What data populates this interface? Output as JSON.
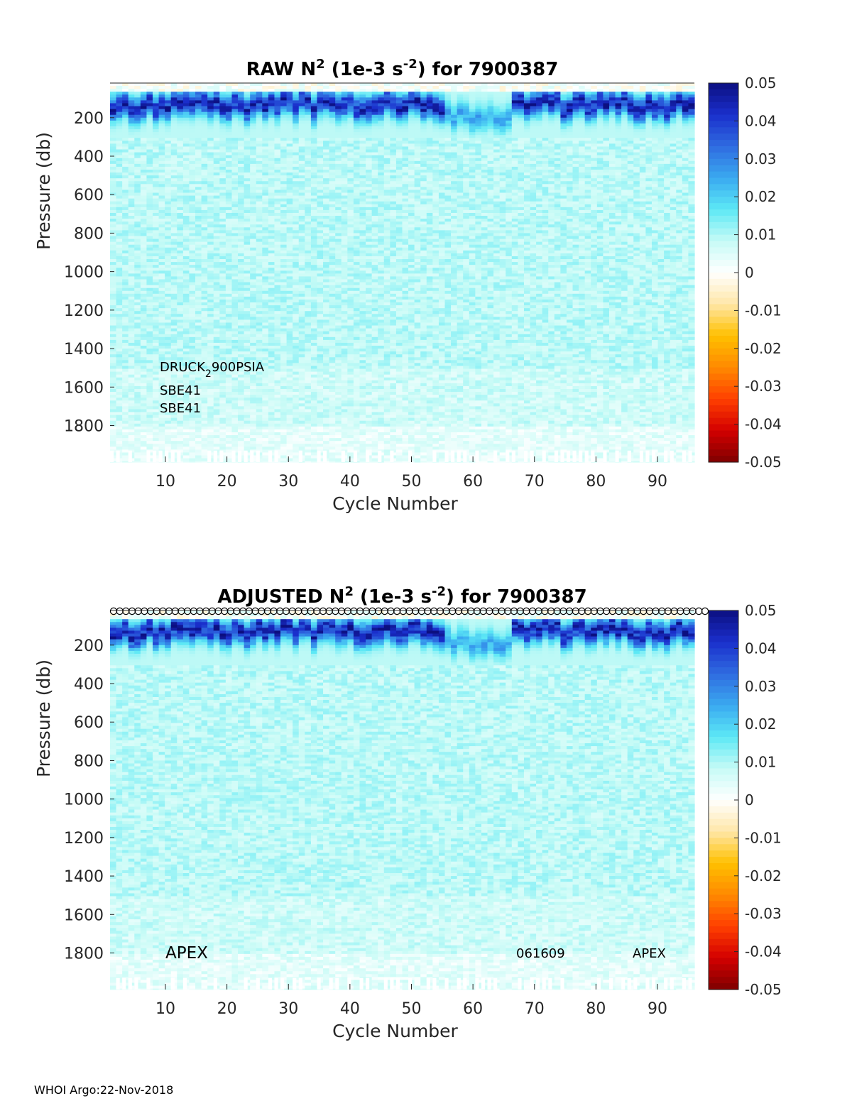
{
  "footer": "WHOI Argo:22-Nov-2018",
  "colors": {
    "colormap": [
      "#7f0000",
      "#d40000",
      "#ff4000",
      "#ff8a00",
      "#ffc000",
      "#ffe7a8",
      "#ffffff",
      "#c6fbf6",
      "#5ce8f5",
      "#3aa9f0",
      "#2f6be0",
      "#1a2fcc",
      "#0c0f80"
    ],
    "sensor_flag": "#000000"
  },
  "chart_data": [
    {
      "type": "heatmap",
      "title_prefix": "RAW N",
      "title_sup1": "2",
      "title_mid": " (1e-3 s",
      "title_sup2": "-2",
      "title_suffix": ") for 7900387",
      "xlabel": "Cycle Number",
      "ylabel": "Pressure (db)",
      "xlim": [
        1,
        96
      ],
      "ylim": [
        1990,
        20
      ],
      "xticks": [
        "10",
        "20",
        "30",
        "40",
        "50",
        "60",
        "70",
        "80",
        "90"
      ],
      "xtick_values": [
        10,
        20,
        30,
        40,
        50,
        60,
        70,
        80,
        90
      ],
      "yticks": [
        "200",
        "400",
        "600",
        "800",
        "1000",
        "1200",
        "1400",
        "1600",
        "1800"
      ],
      "ytick_values": [
        200,
        400,
        600,
        800,
        1000,
        1200,
        1400,
        1600,
        1800
      ],
      "clim": [
        -0.05,
        0.05
      ],
      "colorbar_ticks": [
        "0.05",
        "0.04",
        "0.03",
        "0.02",
        "0.01",
        "0",
        "-0.01",
        "-0.02",
        "-0.03",
        "-0.04",
        "-0.05"
      ],
      "colorbar_values": [
        0.05,
        0.04,
        0.03,
        0.02,
        0.01,
        0,
        -0.01,
        -0.02,
        -0.03,
        -0.04,
        -0.05
      ],
      "field_description": {
        "surface_layer_db": [
          20,
          60
        ],
        "surface_value": 0.001,
        "pycnocline_db": [
          60,
          300
        ],
        "pycnocline_peak_value": 0.048,
        "deep_value": 0.009,
        "weak_cycles": [
          56,
          66
        ]
      },
      "annotations": {
        "pressure_sensor_prefix": "DRUCK",
        "pressure_sensor_sub": "2",
        "pressure_sensor_suffix": "900PSIA",
        "ctd1": "SBE41",
        "ctd2": "SBE41"
      },
      "qc_circles": false
    },
    {
      "type": "heatmap",
      "title_prefix": "ADJUSTED N",
      "title_sup1": "2",
      "title_mid": " (1e-3 s",
      "title_sup2": "-2",
      "title_suffix": ") for 7900387",
      "xlabel": "Cycle Number",
      "ylabel": "Pressure (db)",
      "xlim": [
        1,
        96
      ],
      "ylim": [
        1990,
        20
      ],
      "xticks": [
        "10",
        "20",
        "30",
        "40",
        "50",
        "60",
        "70",
        "80",
        "90"
      ],
      "xtick_values": [
        10,
        20,
        30,
        40,
        50,
        60,
        70,
        80,
        90
      ],
      "yticks": [
        "200",
        "400",
        "600",
        "800",
        "1000",
        "1200",
        "1400",
        "1600",
        "1800"
      ],
      "ytick_values": [
        200,
        400,
        600,
        800,
        1000,
        1200,
        1400,
        1600,
        1800
      ],
      "clim": [
        -0.05,
        0.05
      ],
      "colorbar_ticks": [
        "0.05",
        "0.04",
        "0.03",
        "0.02",
        "0.01",
        "0",
        "-0.01",
        "-0.02",
        "-0.03",
        "-0.04",
        "-0.05"
      ],
      "colorbar_values": [
        0.05,
        0.04,
        0.03,
        0.02,
        0.01,
        0,
        -0.01,
        -0.02,
        -0.03,
        -0.04,
        -0.05
      ],
      "field_description": {
        "surface_layer_db": [
          20,
          60
        ],
        "surface_value": 0.001,
        "pycnocline_db": [
          60,
          300
        ],
        "pycnocline_peak_value": 0.048,
        "deep_value": 0.009,
        "weak_cycles": [
          56,
          66
        ]
      },
      "annotations": {
        "platform_left": "APEX",
        "firmware": "061609",
        "platform_right": "APEX"
      },
      "qc_circles": true
    }
  ]
}
